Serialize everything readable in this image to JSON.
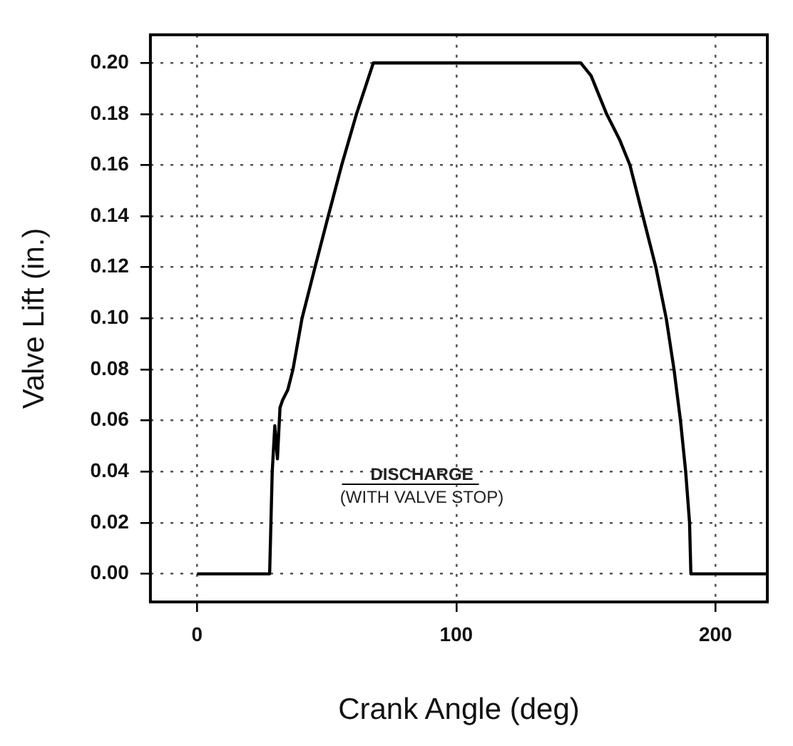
{
  "chart_data": {
    "type": "line",
    "xlabel": "Crank Angle (deg)",
    "ylabel": "Valve Lift (in.)",
    "annotations": [
      "DISCHARGE",
      "(WITH VALVE STOP)"
    ],
    "series": [
      {
        "color": "#000000",
        "x": [
          0,
          28,
          29,
          30,
          31,
          32,
          33,
          35,
          37,
          40.5,
          45.5,
          50.6,
          55.8,
          61.5,
          68,
          148,
          152,
          158,
          163,
          167,
          172,
          177,
          181,
          184,
          186.5,
          188.5,
          190,
          190.5,
          220
        ],
        "values": [
          0,
          0,
          0.04,
          0.058,
          0.045,
          0.065,
          0.068,
          0.072,
          0.08,
          0.1,
          0.12,
          0.14,
          0.16,
          0.18,
          0.2,
          0.2,
          0.195,
          0.18,
          0.17,
          0.16,
          0.14,
          0.12,
          0.1,
          0.08,
          0.06,
          0.04,
          0.02,
          0,
          0
        ]
      }
    ],
    "xlim": [
      -18,
      220
    ],
    "xticks": [
      0,
      100,
      200
    ],
    "ylim": [
      -0.011,
      0.211
    ],
    "yticks": [
      {
        "value": 0,
        "label": "0.00"
      },
      {
        "value": 0.02,
        "label": "0.02"
      },
      {
        "value": 0.04,
        "label": "0.04"
      },
      {
        "value": 0.06,
        "label": "0.06"
      },
      {
        "value": 0.08,
        "label": "0.08"
      },
      {
        "value": 0.1,
        "label": "0.10"
      },
      {
        "value": 0.12,
        "label": "0.12"
      },
      {
        "value": 0.14,
        "label": "0.14"
      },
      {
        "value": 0.16,
        "label": "0.16"
      },
      {
        "value": 0.18,
        "label": "0.18"
      },
      {
        "value": 0.2,
        "label": "0.20"
      }
    ],
    "grid": true,
    "legend": false,
    "marker": "none",
    "line_style": "solid"
  }
}
